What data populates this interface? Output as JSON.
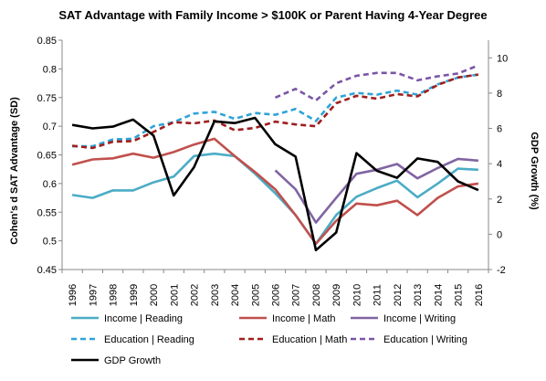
{
  "chart_data": {
    "type": "line",
    "title": "SAT Advantage with Family Income > $100K  or Parent Having 4-Year Degree",
    "ylabel": "Cohen's d SAT Advantage (SD)",
    "y2label": "GDP Growth (%)",
    "xlabel": "",
    "ylim": [
      0.45,
      0.85
    ],
    "y2lim": [
      -2,
      11
    ],
    "yticks": [
      "0.45",
      "0.5",
      "0.55",
      "0.6",
      "0.65",
      "0.7",
      "0.75",
      "0.8",
      "0.85"
    ],
    "y2ticks": [
      "-2",
      "0",
      "2",
      "4",
      "6",
      "8",
      "10"
    ],
    "categories": [
      "1996",
      "1997",
      "1998",
      "1999",
      "2000",
      "2001",
      "2002",
      "2003",
      "2004",
      "2005",
      "2006",
      "2007",
      "2008",
      "2009",
      "2010",
      "2011",
      "2012",
      "2013",
      "2014",
      "2015",
      "2016"
    ],
    "grid": false,
    "legend_position": "bottom",
    "series": [
      {
        "name": "Income | Reading",
        "color": "#4bacc6",
        "dash": "solid",
        "axis": "left",
        "values": [
          0.58,
          0.575,
          0.588,
          0.588,
          0.602,
          0.612,
          0.648,
          0.652,
          0.648,
          0.617,
          0.583,
          0.545,
          0.495,
          0.545,
          0.577,
          0.592,
          0.605,
          0.576,
          0.6,
          0.626,
          0.624
        ]
      },
      {
        "name": "Income | Math",
        "color": "#c0504d",
        "dash": "solid",
        "axis": "left",
        "values": [
          0.633,
          0.642,
          0.644,
          0.652,
          0.645,
          0.655,
          0.668,
          0.678,
          0.648,
          0.62,
          0.59,
          0.545,
          0.495,
          0.535,
          0.565,
          0.562,
          0.57,
          0.545,
          0.575,
          0.595,
          0.6
        ]
      },
      {
        "name": "Income | Writing",
        "color": "#8064a2",
        "dash": "solid",
        "axis": "left",
        "values": [
          null,
          null,
          null,
          null,
          null,
          null,
          null,
          null,
          null,
          null,
          0.623,
          0.59,
          0.532,
          0.575,
          0.617,
          0.624,
          0.634,
          0.609,
          0.627,
          0.643,
          0.64
        ]
      },
      {
        "name": "Education | Reading",
        "color": "#2fa3d8",
        "dash": "dashed",
        "axis": "left",
        "values": [
          0.665,
          0.665,
          0.677,
          0.678,
          0.7,
          0.707,
          0.722,
          0.725,
          0.713,
          0.723,
          0.72,
          0.73,
          0.709,
          0.75,
          0.758,
          0.755,
          0.762,
          0.755,
          0.773,
          0.785,
          0.79
        ]
      },
      {
        "name": "Education | Math",
        "color": "#a01e1e",
        "dash": "dashed",
        "axis": "left",
        "values": [
          0.666,
          0.662,
          0.673,
          0.674,
          0.69,
          0.707,
          0.705,
          0.71,
          0.693,
          0.697,
          0.708,
          0.703,
          0.7,
          0.74,
          0.753,
          0.748,
          0.756,
          0.752,
          0.772,
          0.785,
          0.79
        ]
      },
      {
        "name": "Education | Writing",
        "color": "#7b55a6",
        "dash": "dashed",
        "axis": "left",
        "values": [
          null,
          null,
          null,
          null,
          null,
          null,
          null,
          null,
          null,
          null,
          0.75,
          0.765,
          0.745,
          0.775,
          0.788,
          0.793,
          0.793,
          0.78,
          0.787,
          0.792,
          0.806
        ]
      },
      {
        "name": "GDP Growth",
        "color": "#000000",
        "dash": "solid",
        "axis": "right",
        "values": [
          6.2,
          6.0,
          6.1,
          6.5,
          5.6,
          2.2,
          3.8,
          6.4,
          6.3,
          6.6,
          5.1,
          4.4,
          -0.9,
          0.1,
          4.6,
          3.6,
          3.2,
          4.3,
          4.1,
          3.0,
          2.5
        ]
      }
    ]
  }
}
